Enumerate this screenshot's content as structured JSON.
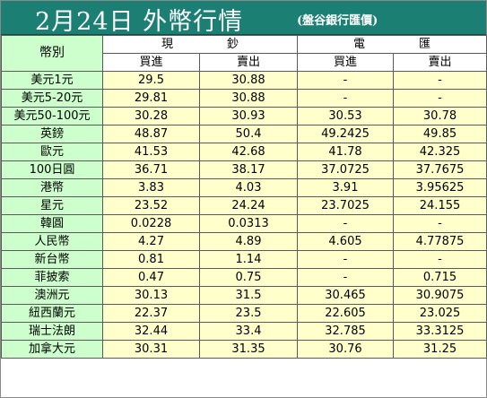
{
  "header": {
    "title": "2月24日 外幣行情",
    "subtitle": "(盤谷銀行匯價)"
  },
  "table": {
    "currency_label": "幣別",
    "cash_group": "現鈔",
    "spot_group": "電匯",
    "buy_label": "買進",
    "sell_label": "賣出",
    "rows": [
      {
        "currency": "美元1元",
        "cash_buy": "29.5",
        "cash_sell": "30.88",
        "spot_buy": "-",
        "spot_sell": "-"
      },
      {
        "currency": "美元5-20元",
        "cash_buy": "29.81",
        "cash_sell": "30.88",
        "spot_buy": "-",
        "spot_sell": "-"
      },
      {
        "currency": "美元50-100元",
        "cash_buy": "30.28",
        "cash_sell": "30.93",
        "spot_buy": "30.53",
        "spot_sell": "30.78"
      },
      {
        "currency": "英鎊",
        "cash_buy": "48.87",
        "cash_sell": "50.4",
        "spot_buy": "49.2425",
        "spot_sell": "49.85"
      },
      {
        "currency": "歐元",
        "cash_buy": "41.53",
        "cash_sell": "42.68",
        "spot_buy": "41.78",
        "spot_sell": "42.325"
      },
      {
        "currency": "100日圓",
        "cash_buy": "36.71",
        "cash_sell": "38.17",
        "spot_buy": "37.0725",
        "spot_sell": "37.7675"
      },
      {
        "currency": "港幣",
        "cash_buy": "3.83",
        "cash_sell": "4.03",
        "spot_buy": "3.91",
        "spot_sell": "3.95625"
      },
      {
        "currency": "星元",
        "cash_buy": "23.52",
        "cash_sell": "24.24",
        "spot_buy": "23.7025",
        "spot_sell": "24.155"
      },
      {
        "currency": "韓圓",
        "cash_buy": "0.0228",
        "cash_sell": "0.0313",
        "spot_buy": "-",
        "spot_sell": "-"
      },
      {
        "currency": "人民幣",
        "cash_buy": "4.27",
        "cash_sell": "4.89",
        "spot_buy": "4.605",
        "spot_sell": "4.77875"
      },
      {
        "currency": "新台幣",
        "cash_buy": "0.81",
        "cash_sell": "1.14",
        "spot_buy": "-",
        "spot_sell": "-"
      },
      {
        "currency": "菲披索",
        "cash_buy": "0.47",
        "cash_sell": "0.75",
        "spot_buy": "-",
        "spot_sell": "0.715"
      },
      {
        "currency": "澳洲元",
        "cash_buy": "30.13",
        "cash_sell": "31.5",
        "spot_buy": "30.465",
        "spot_sell": "30.9075"
      },
      {
        "currency": "紐西蘭元",
        "cash_buy": "22.37",
        "cash_sell": "23.5",
        "spot_buy": "22.605",
        "spot_sell": "23.025"
      },
      {
        "currency": "瑞士法朗",
        "cash_buy": "32.44",
        "cash_sell": "33.4",
        "spot_buy": "32.785",
        "spot_sell": "33.3125"
      },
      {
        "currency": "加拿大元",
        "cash_buy": "30.31",
        "cash_sell": "31.35",
        "spot_buy": "30.76",
        "spot_sell": "31.25"
      }
    ]
  },
  "colors": {
    "title_bar": "#1b7f74",
    "currency_column": "#ccffcc",
    "value_cells": "#ffffcc"
  }
}
